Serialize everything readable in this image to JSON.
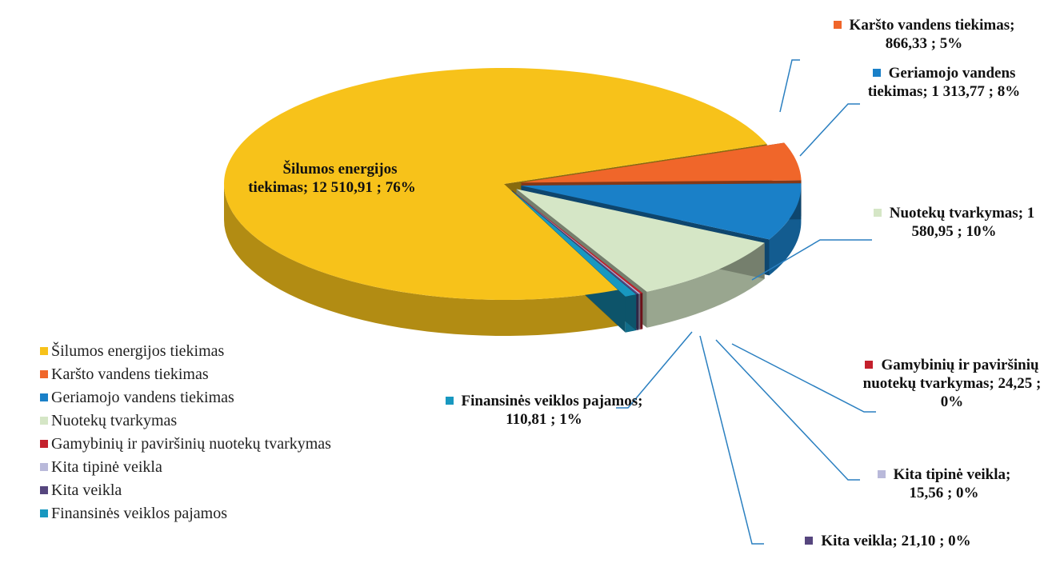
{
  "chart_data": {
    "type": "pie",
    "categories": [
      "Šilumos energijos tiekimas",
      "Karšto vandens tiekimas",
      "Geriamojo vandens tiekimas",
      "Nuotekų tvarkymas",
      "Gamybinių ir paviršinių nuotekų tvarkymas",
      "Kita tipinė veikla",
      "Kita veikla",
      "Finansinės veiklos pajamos"
    ],
    "values": [
      12510.91,
      866.33,
      1313.77,
      1580.95,
      24.25,
      15.56,
      21.1,
      110.81
    ],
    "data_labels": [
      "Šilumos energijos tiekimas; 12 510,91 ; 76%",
      "Karšto vandens tiekimas; 866,33 ; 5%",
      "Geriamojo vandens tiekimas; 1 313,77 ; 8%",
      "Nuotekų tvarkymas; 1 580,95 ; 10%",
      "Gamybinių ir paviršinių nuotekų tvarkymas; 24,25 ; 0%",
      "Kita tipinė veikla; 15,56 ; 0%",
      "Kita veikla; 21,10 ; 0%",
      "Finansinės veiklos pajamos; 110,81 ; 1%"
    ],
    "colors": [
      "#f7c21a",
      "#f0662a",
      "#1a80c8",
      "#d5e6c6",
      "#c4202c",
      "#b9b9da",
      "#56467e",
      "#1898c0"
    ],
    "legend": "bottom-left"
  }
}
